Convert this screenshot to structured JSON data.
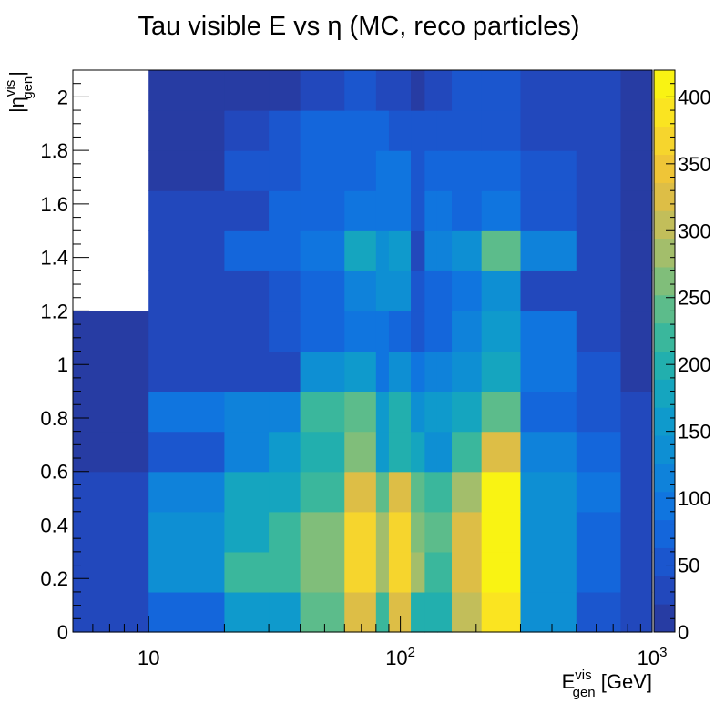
{
  "chart_data": {
    "type": "heatmap",
    "title": "Tau visible E vs  η (MC, reco particles)",
    "xlabel": {
      "main": "E",
      "sup": "vis",
      "sub": "gen",
      "unit": " [GeV]"
    },
    "ylabel": {
      "pre": "|η",
      "sup": "vis",
      "sub": "gen",
      "post": "|"
    },
    "x_scale": "log",
    "xlim": [
      5,
      1000
    ],
    "ylim": [
      0,
      2.1
    ],
    "zlim": [
      0,
      420
    ],
    "x_ticks": [
      {
        "base": "10",
        "exp": ""
      },
      {
        "base": "10",
        "exp": "2"
      },
      {
        "base": "10",
        "exp": "3"
      }
    ],
    "y_ticks": [
      "0",
      "0.2",
      "0.4",
      "0.6",
      "0.8",
      "1",
      "1.2",
      "1.4",
      "1.6",
      "1.8",
      "2"
    ],
    "z_ticks": [
      "0",
      "50",
      "100",
      "150",
      "200",
      "250",
      "300",
      "350",
      "400"
    ],
    "x_edges": [
      5,
      10,
      20,
      30,
      40,
      60,
      80,
      90,
      110,
      125,
      140,
      160,
      180,
      210,
      300,
      500,
      750,
      1000
    ],
    "y_edges": [
      0,
      0.15,
      0.3,
      0.45,
      0.6,
      0.75,
      0.9,
      1.05,
      1.2,
      1.35,
      1.5,
      1.65,
      1.8,
      1.95,
      2.1
    ],
    "values": [
      [
        30,
        80,
        150,
        150,
        240,
        320,
        215,
        320,
        200,
        195,
        195,
        300,
        300,
        380,
        140,
        60,
        40
      ],
      [
        30,
        140,
        230,
        230,
        270,
        370,
        280,
        370,
        290,
        230,
        230,
        320,
        320,
        420,
        140,
        70,
        40
      ],
      [
        30,
        140,
        170,
        210,
        270,
        370,
        280,
        370,
        260,
        240,
        240,
        320,
        320,
        420,
        140,
        80,
        40
      ],
      [
        30,
        120,
        170,
        170,
        220,
        320,
        245,
        330,
        250,
        230,
        230,
        280,
        280,
        420,
        140,
        90,
        40
      ],
      [
        10,
        60,
        110,
        150,
        190,
        270,
        160,
        200,
        180,
        140,
        140,
        230,
        230,
        320,
        110,
        80,
        40
      ],
      [
        10,
        100,
        110,
        110,
        210,
        250,
        150,
        200,
        130,
        160,
        160,
        170,
        170,
        240,
        70,
        60,
        30
      ],
      [
        10,
        40,
        40,
        40,
        130,
        150,
        100,
        130,
        90,
        110,
        110,
        140,
        140,
        180,
        85,
        45,
        20
      ],
      [
        10,
        30,
        30,
        60,
        80,
        100,
        90,
        80,
        50,
        80,
        80,
        110,
        110,
        150,
        100,
        40,
        20
      ],
      [
        null,
        30,
        30,
        60,
        80,
        110,
        130,
        130,
        50,
        80,
        80,
        90,
        90,
        140,
        40,
        40,
        20
      ],
      [
        null,
        30,
        80,
        80,
        100,
        180,
        140,
        160,
        40,
        120,
        120,
        140,
        140,
        240,
        110,
        40,
        20
      ],
      [
        null,
        40,
        40,
        80,
        80,
        100,
        100,
        100,
        50,
        100,
        100,
        80,
        80,
        100,
        60,
        40,
        20
      ],
      [
        null,
        10,
        60,
        60,
        70,
        80,
        100,
        90,
        60,
        80,
        80,
        70,
        70,
        80,
        60,
        40,
        20
      ],
      [
        null,
        10,
        40,
        60,
        70,
        70,
        70,
        60,
        60,
        50,
        50,
        60,
        60,
        60,
        40,
        30,
        10
      ],
      [
        null,
        10,
        10,
        10,
        40,
        60,
        30,
        40,
        10,
        40,
        40,
        50,
        50,
        50,
        40,
        30,
        10
      ]
    ]
  }
}
